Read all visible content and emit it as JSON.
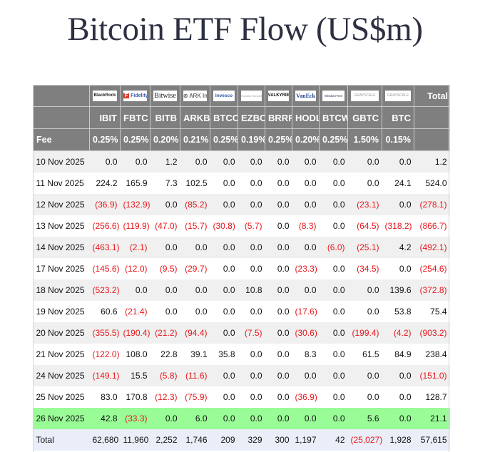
{
  "title": "Bitcoin ETF Flow (US$m)",
  "colors": {
    "header_bg": "#7f7f7f",
    "negative": "#e8171b",
    "highlight_row": "#9afc97",
    "total_row": "#e9eef8",
    "stripe": "#f0f0f0"
  },
  "header": {
    "total_label": "Total",
    "fee_label": "Fee",
    "issuers": [
      {
        "logo": "BlackRock",
        "ticker": "IBIT",
        "fee": "0.25%"
      },
      {
        "logo": "Fidelity",
        "ticker": "FBTC",
        "fee": "0.25%"
      },
      {
        "logo": "Bitwise",
        "ticker": "BITB",
        "fee": "0.20%"
      },
      {
        "logo": "ARK Invest",
        "ticker": "ARKB",
        "fee": "0.21%"
      },
      {
        "logo": "Invesco",
        "ticker": "BTCO",
        "fee": "0.25%"
      },
      {
        "logo": "Franklin Templeton",
        "ticker": "EZBC",
        "fee": "0.19%"
      },
      {
        "logo": "VALKYRIE",
        "ticker": "BRRR",
        "fee": "0.25%"
      },
      {
        "logo": "VanEck",
        "ticker": "HODL",
        "fee": "0.20%"
      },
      {
        "logo": "WisdomTree",
        "ticker": "BTCW",
        "fee": "0.25%"
      },
      {
        "logo": "GRAYSCALE",
        "ticker": "GBTC",
        "fee": "1.50%"
      },
      {
        "logo": "GRAYSCALE",
        "ticker": "BTC",
        "fee": "0.15%"
      }
    ]
  },
  "rows": [
    {
      "date": "10 Nov 2025",
      "v": [
        "0.0",
        "0.0",
        "1.2",
        "0.0",
        "0.0",
        "0.0",
        "0.0",
        "0.0",
        "0.0",
        "0.0",
        "0.0",
        "1.2"
      ]
    },
    {
      "date": "11 Nov 2025",
      "v": [
        "224.2",
        "165.9",
        "7.3",
        "102.5",
        "0.0",
        "0.0",
        "0.0",
        "0.0",
        "0.0",
        "0.0",
        "24.1",
        "524.0"
      ]
    },
    {
      "date": "12 Nov 2025",
      "v": [
        "(36.9)",
        "(132.9)",
        "0.0",
        "(85.2)",
        "0.0",
        "0.0",
        "0.0",
        "0.0",
        "0.0",
        "(23.1)",
        "0.0",
        "(278.1)"
      ]
    },
    {
      "date": "13 Nov 2025",
      "v": [
        "(256.6)",
        "(119.9)",
        "(47.0)",
        "(15.7)",
        "(30.8)",
        "(5.7)",
        "0.0",
        "(8.3)",
        "0.0",
        "(64.5)",
        "(318.2)",
        "(866.7)"
      ]
    },
    {
      "date": "14 Nov 2025",
      "v": [
        "(463.1)",
        "(2.1)",
        "0.0",
        "0.0",
        "0.0",
        "0.0",
        "0.0",
        "0.0",
        "(6.0)",
        "(25.1)",
        "4.2",
        "(492.1)"
      ]
    },
    {
      "date": "17 Nov 2025",
      "v": [
        "(145.6)",
        "(12.0)",
        "(9.5)",
        "(29.7)",
        "0.0",
        "0.0",
        "0.0",
        "(23.3)",
        "0.0",
        "(34.5)",
        "0.0",
        "(254.6)"
      ]
    },
    {
      "date": "18 Nov 2025",
      "v": [
        "(523.2)",
        "0.0",
        "0.0",
        "0.0",
        "0.0",
        "10.8",
        "0.0",
        "0.0",
        "0.0",
        "0.0",
        "139.6",
        "(372.8)"
      ]
    },
    {
      "date": "19 Nov 2025",
      "v": [
        "60.6",
        "(21.4)",
        "0.0",
        "0.0",
        "0.0",
        "0.0",
        "0.0",
        "(17.6)",
        "0.0",
        "0.0",
        "53.8",
        "75.4"
      ]
    },
    {
      "date": "20 Nov 2025",
      "v": [
        "(355.5)",
        "(190.4)",
        "(21.2)",
        "(94.4)",
        "0.0",
        "(7.5)",
        "0.0",
        "(30.6)",
        "0.0",
        "(199.4)",
        "(4.2)",
        "(903.2)"
      ]
    },
    {
      "date": "21 Nov 2025",
      "v": [
        "(122.0)",
        "108.0",
        "22.8",
        "39.1",
        "35.8",
        "0.0",
        "0.0",
        "8.3",
        "0.0",
        "61.5",
        "84.9",
        "238.4"
      ]
    },
    {
      "date": "24 Nov 2025",
      "v": [
        "(149.1)",
        "15.5",
        "(5.8)",
        "(11.6)",
        "0.0",
        "0.0",
        "0.0",
        "0.0",
        "0.0",
        "0.0",
        "0.0",
        "(151.0)"
      ]
    },
    {
      "date": "25 Nov 2025",
      "v": [
        "83.0",
        "170.8",
        "(12.3)",
        "(75.9)",
        "0.0",
        "0.0",
        "0.0",
        "(36.9)",
        "0.0",
        "0.0",
        "0.0",
        "128.7"
      ]
    },
    {
      "date": "26 Nov 2025",
      "v": [
        "42.8",
        "(33.3)",
        "0.0",
        "6.0",
        "0.0",
        "0.0",
        "0.0",
        "0.0",
        "0.0",
        "5.6",
        "0.0",
        "21.1"
      ],
      "highlight": true
    }
  ],
  "total_row": {
    "label": "Total",
    "v": [
      "62,680",
      "11,960",
      "2,252",
      "1,746",
      "209",
      "329",
      "300",
      "1,197",
      "42",
      "(25,027)",
      "1,928",
      "57,615"
    ]
  }
}
